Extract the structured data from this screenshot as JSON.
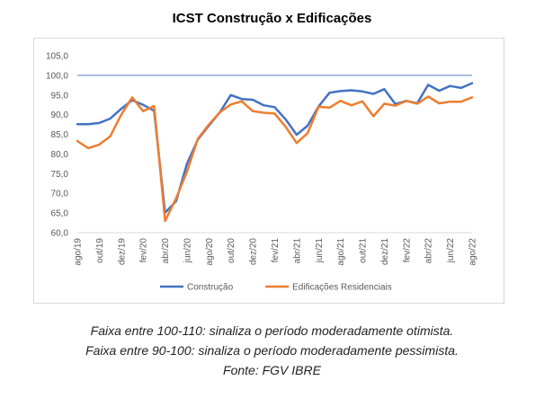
{
  "chart_data": {
    "type": "line",
    "title": "ICST Construção x Edificações",
    "xlabel": "",
    "ylabel": "",
    "ylim": [
      60,
      105
    ],
    "yticks": [
      "60,0",
      "65,0",
      "70,0",
      "75,0",
      "80,0",
      "85,0",
      "90,0",
      "95,0",
      "100,0",
      "105,0"
    ],
    "xtick_labels": [
      "ago/19",
      "out/19",
      "dez/19",
      "fev/20",
      "abr/20",
      "jun/20",
      "ago/20",
      "out/20",
      "dez/20",
      "fev/21",
      "abr/21",
      "jun/21",
      "ago/21",
      "out/21",
      "dez/21",
      "fev/22",
      "abr/22",
      "jun/22",
      "ago/22"
    ],
    "reference_line": 100,
    "legend_position": "bottom",
    "series": [
      {
        "name": "Construção",
        "color": "#4472c4",
        "values": [
          87.6,
          87.6,
          87.9,
          89.0,
          91.5,
          93.7,
          92.5,
          91.0,
          65.1,
          68.0,
          77.5,
          83.7,
          87.2,
          90.6,
          95.0,
          94.0,
          93.8,
          92.4,
          91.9,
          88.8,
          84.9,
          87.2,
          92.1,
          95.6,
          96.0,
          96.2,
          95.9,
          95.3,
          96.5,
          92.7,
          93.5,
          92.9,
          97.6,
          96.1,
          97.3,
          96.8,
          98.0
        ]
      },
      {
        "name": "Edificações Residenciais",
        "color": "#ed7d31",
        "values": [
          83.3,
          81.5,
          82.4,
          84.5,
          90.0,
          94.4,
          90.9,
          92.2,
          63.0,
          68.7,
          75.5,
          83.9,
          87.5,
          90.6,
          92.6,
          93.4,
          90.9,
          90.5,
          90.3,
          86.9,
          82.8,
          85.3,
          92.0,
          91.8,
          93.5,
          92.4,
          93.4,
          89.6,
          92.8,
          92.3,
          93.5,
          92.8,
          94.6,
          92.9,
          93.3,
          93.3,
          94.4
        ]
      }
    ]
  },
  "notes": {
    "line1": "Faixa entre 100-110: sinaliza o período moderadamente otimista.",
    "line2": "Faixa entre 90-100: sinaliza o período moderadamente pessimista.",
    "line3": "Fonte: FGV IBRE"
  }
}
